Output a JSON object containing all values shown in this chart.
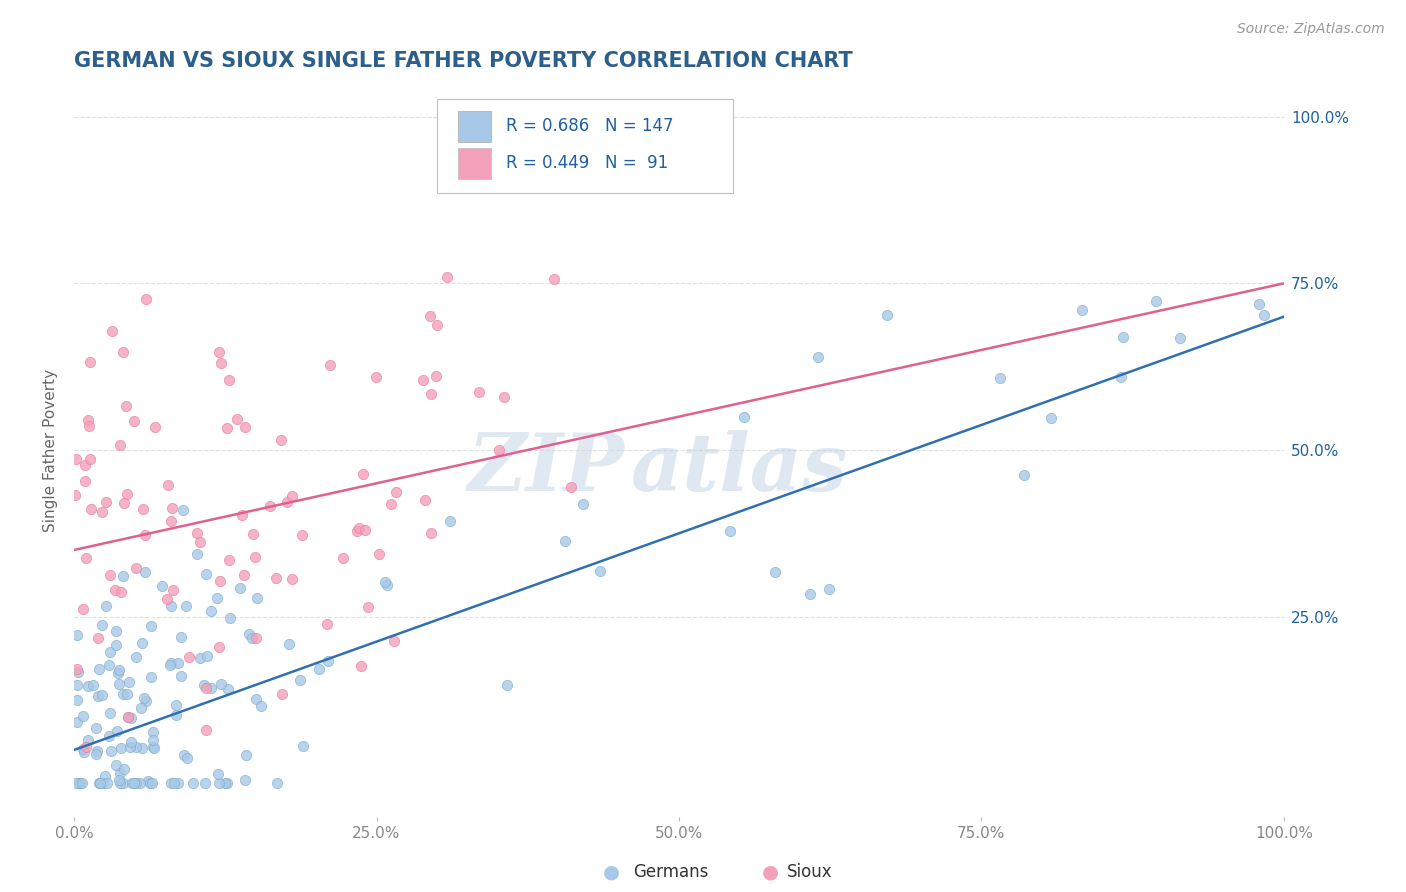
{
  "title": "GERMAN VS SIOUX SINGLE FATHER POVERTY CORRELATION CHART",
  "source": "Source: ZipAtlas.com",
  "ylabel": "Single Father Poverty",
  "xlim": [
    0.0,
    1.0
  ],
  "ylim": [
    -0.05,
    1.05
  ],
  "xticks": [
    0.0,
    0.25,
    0.5,
    0.75,
    1.0
  ],
  "yticks": [
    0.25,
    0.5,
    0.75,
    1.0
  ],
  "xtick_labels": [
    "0.0%",
    "25.0%",
    "50.0%",
    "75.0%",
    "100.0%"
  ],
  "ytick_labels": [
    "25.0%",
    "50.0%",
    "75.0%",
    "100.0%"
  ],
  "blue_R": 0.686,
  "blue_N": 147,
  "pink_R": 0.449,
  "pink_N": 91,
  "legend_labels": [
    "Germans",
    "Sioux"
  ],
  "blue_color": "#a8c8e8",
  "pink_color": "#f4a0b8",
  "blue_scatter_edge": "#7aaac8",
  "pink_scatter_edge": "#e878a0",
  "blue_line_color": "#3070b0",
  "pink_line_color": "#e06090",
  "watermark_color": "#dce8f0",
  "title_color": "#2c5f8a",
  "legend_text_color": "#2060a0",
  "grid_color": "#dddddd",
  "tick_color": "#888888",
  "ylabel_color": "#666666",
  "source_color": "#999999",
  "blue_intercept": 0.05,
  "blue_slope": 0.65,
  "pink_intercept": 0.35,
  "pink_slope": 0.4
}
